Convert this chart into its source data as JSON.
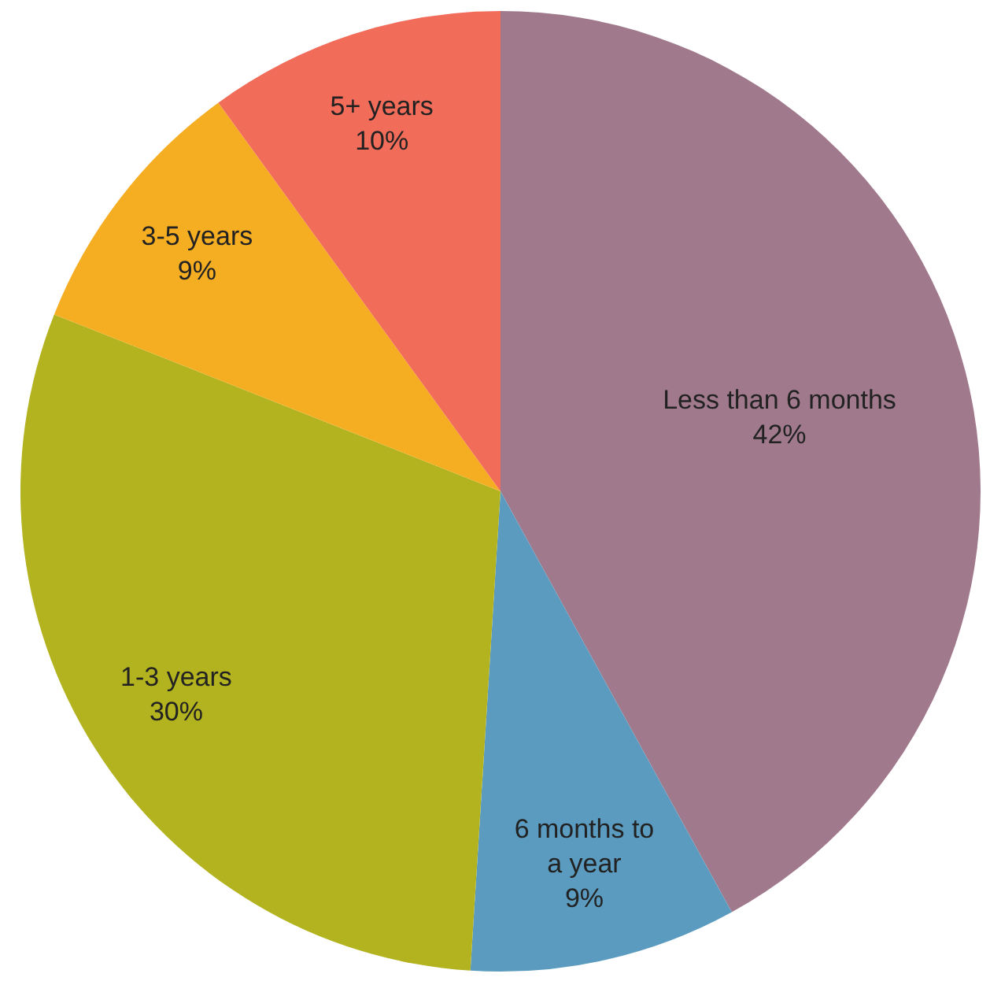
{
  "chart_data": {
    "type": "pie",
    "categories": [
      "Less than 6 months",
      "6 months to a year",
      "1-3 years",
      "3-5 years",
      "5+ years"
    ],
    "values": [
      42,
      9,
      30,
      9,
      10
    ],
    "value_labels": [
      "42%",
      "9%",
      "30%",
      "9%",
      "10%"
    ],
    "colors": [
      "#a07a8c",
      "#5a9bbf",
      "#b3b31f",
      "#f5ad22",
      "#f26c5a"
    ]
  }
}
